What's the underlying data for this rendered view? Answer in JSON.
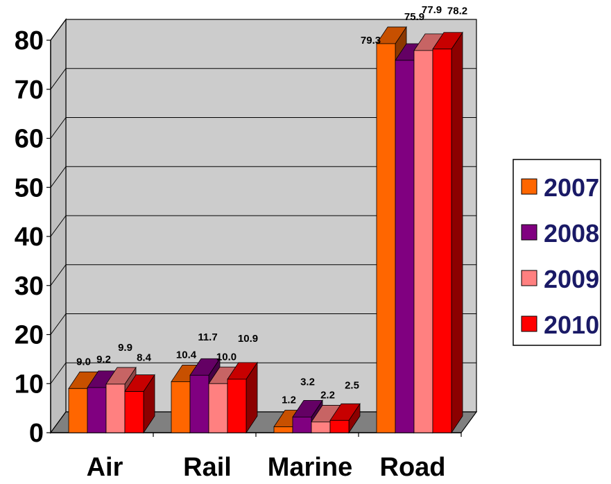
{
  "chart_data": {
    "type": "bar",
    "title": "",
    "xlabel": "",
    "ylabel": "",
    "categories": [
      "Air",
      "Rail",
      "Marine",
      "Road"
    ],
    "series": [
      {
        "name": "2007",
        "values": [
          9.0,
          10.4,
          1.2,
          79.3
        ],
        "color": "#ff6600"
      },
      {
        "name": "2008",
        "values": [
          9.2,
          11.7,
          3.2,
          75.9
        ],
        "color": "#800080"
      },
      {
        "name": "2009",
        "values": [
          9.9,
          10.0,
          2.2,
          77.9
        ],
        "color": "#ff8080"
      },
      {
        "name": "2010",
        "values": [
          8.4,
          10.9,
          2.5,
          78.2
        ],
        "color": "#ff0000"
      }
    ],
    "yticks": [
      "0",
      "10",
      "20",
      "30",
      "40",
      "50",
      "60",
      "70",
      "80"
    ],
    "ylim": [
      0,
      80
    ],
    "grid": true,
    "legend_position": "right",
    "three_d": true
  }
}
